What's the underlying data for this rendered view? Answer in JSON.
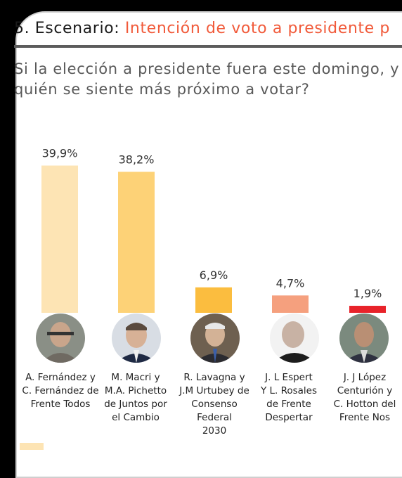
{
  "header": {
    "title_prefix": "5. Escenario:",
    "title_accent": "Intención de voto a presidente p",
    "question_line1": "Si la elección a presidente fuera este domingo, y",
    "question_line2": "quién se siente más próximo a votar?"
  },
  "colors": {
    "accent": "#f15a3a",
    "bar_colors": [
      "#fde4b4",
      "#fdd277",
      "#fbbd3f",
      "#f5a07e",
      "#e8232a"
    ]
  },
  "chart_data": {
    "type": "bar",
    "title": "",
    "xlabel": "",
    "ylabel": "",
    "categories": [
      "A. Fernández y C. Fernández de Frente Todos",
      "M. Macri y M.A. Pichetto de Juntos por el Cambio",
      "R. Lavagna y J.M Urtubey de Consenso Federal 2030",
      "J. L Espert Y L. Rosales de Frente Despertar",
      "J. J López Centurión y C. Hotton del Frente Nos"
    ],
    "values": [
      39.9,
      38.2,
      6.9,
      4.7,
      1.9
    ],
    "data_labels": [
      "39,9%",
      "38,2%",
      "6,9%",
      "4,7%",
      "1,9%"
    ],
    "ylim": [
      0,
      40
    ],
    "grid": false,
    "legend": false
  },
  "candidates": [
    {
      "label": "A. Fernández y\nC. Fernández de\nFrente Todos",
      "icon": "candidate-photo"
    },
    {
      "label": "M. Macri y\nM.A. Pichetto\nde Juntos por\nel Cambio",
      "icon": "candidate-photo"
    },
    {
      "label": "R. Lavagna y\nJ.M Urtubey de\nConsenso\nFederal\n2030",
      "icon": "candidate-photo"
    },
    {
      "label": "J. L Espert\nY L. Rosales\nde Frente\nDespertar",
      "icon": "candidate-photo"
    },
    {
      "label": "J. J López\nCenturión y\nC. Hotton del\nFrente Nos",
      "icon": "candidate-photo"
    }
  ]
}
